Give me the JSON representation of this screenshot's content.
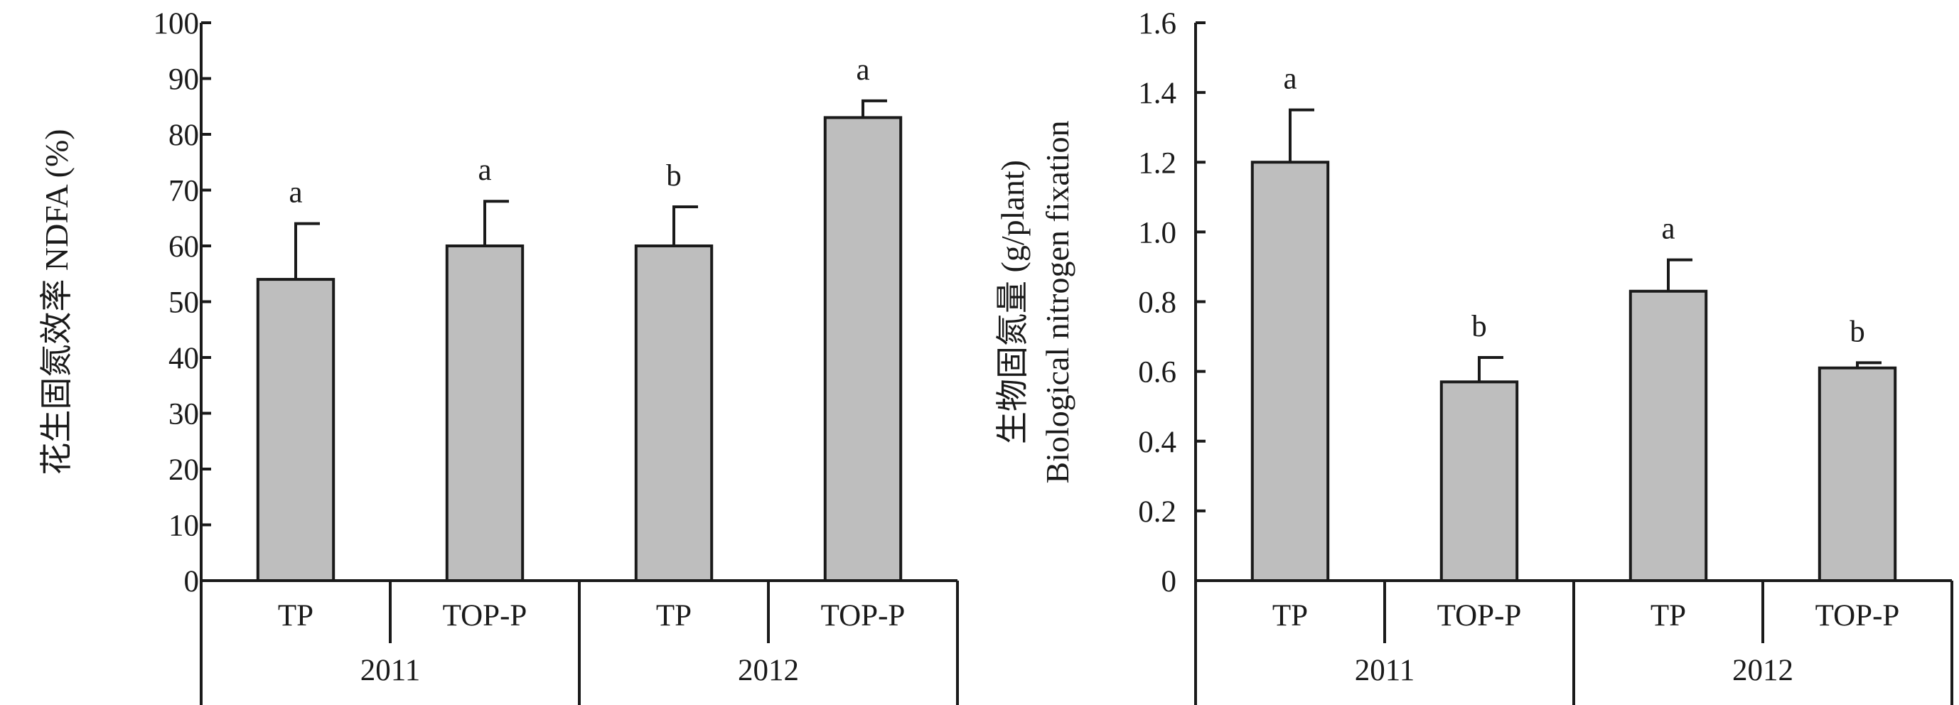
{
  "chart_data": [
    {
      "type": "bar",
      "ylabel": "花生固氮效率 NDFA (%)",
      "ylim": [
        0,
        100
      ],
      "yticks": [
        0,
        10,
        20,
        30,
        40,
        50,
        60,
        70,
        80,
        90,
        100
      ],
      "ytick_labels": [
        "0",
        "10",
        "20",
        "30",
        "40",
        "50",
        "60",
        "70",
        "80",
        "90",
        "100"
      ],
      "categories": [
        "TP",
        "TOP-P",
        "TP",
        "TOP-P"
      ],
      "groups": [
        "2011",
        "2012"
      ],
      "values": [
        54,
        60,
        60,
        83
      ],
      "errors": [
        10,
        8,
        7,
        3
      ],
      "significance": [
        "a",
        "a",
        "b",
        "a"
      ],
      "bar_color": "#bebebe"
    },
    {
      "type": "bar",
      "ylabel_lines": [
        "生物固氮量 (g/plant)",
        "Biological nitrogen fixation"
      ],
      "ylim": [
        0,
        1.6
      ],
      "yticks": [
        0,
        0.2,
        0.4,
        0.6,
        0.8,
        1.0,
        1.2,
        1.4,
        1.6
      ],
      "ytick_labels": [
        "0",
        "0.2",
        "0.4",
        "0.6",
        "0.8",
        "1.0",
        "1.2",
        "1.4",
        "1.6"
      ],
      "categories": [
        "TP",
        "TOP-P",
        "TP",
        "TOP-P"
      ],
      "groups": [
        "2011",
        "2012"
      ],
      "values": [
        1.2,
        0.57,
        0.83,
        0.61
      ],
      "errors": [
        0.15,
        0.07,
        0.09,
        0.015
      ],
      "significance": [
        "a",
        "b",
        "a",
        "b"
      ],
      "bar_color": "#bebebe"
    }
  ]
}
